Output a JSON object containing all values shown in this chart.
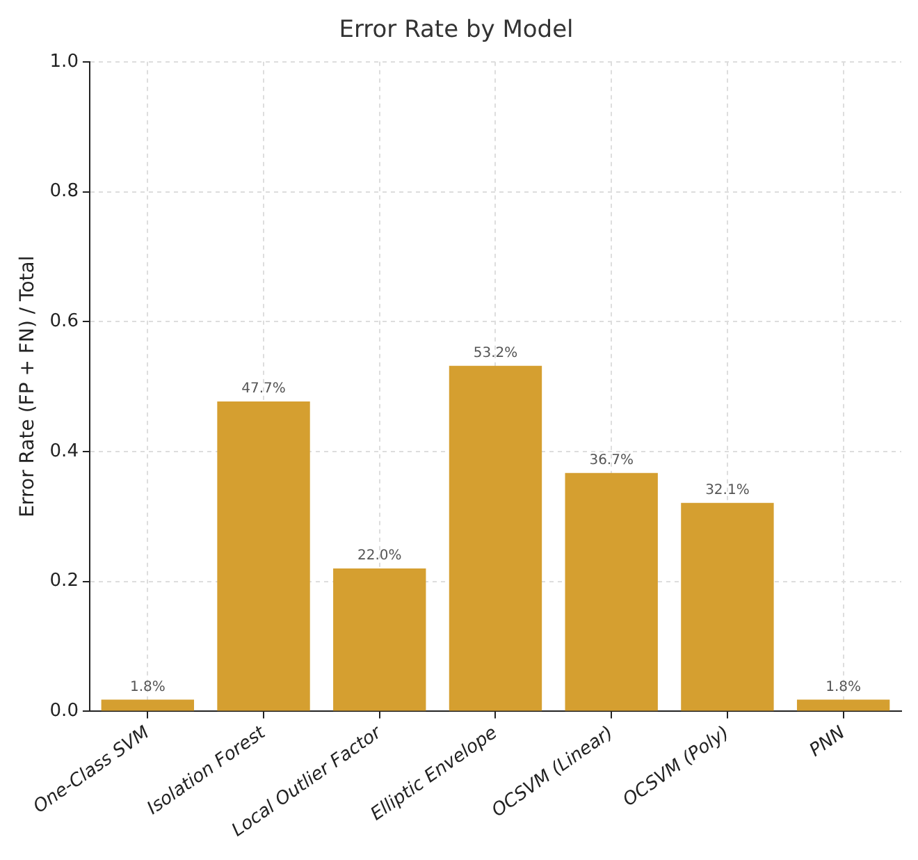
{
  "chart_data": {
    "type": "bar",
    "title": "Error Rate by Model",
    "ylabel": "Error Rate (FP + FN) / Total",
    "categories": [
      "One-Class SVM",
      "Isolation Forest",
      "Local Outlier Factor",
      "Elliptic Envelope",
      "OCSVM (Linear)",
      "OCSVM (Poly)",
      "PNN"
    ],
    "values": [
      0.018,
      0.477,
      0.22,
      0.532,
      0.367,
      0.321,
      0.018
    ],
    "value_labels": [
      "1.8%",
      "47.7%",
      "22.0%",
      "53.2%",
      "36.7%",
      "32.1%",
      "1.8%"
    ],
    "color": "#d59f30",
    "ylim": [
      0,
      1
    ],
    "yticks": [
      {
        "value": 0,
        "label": "0.0"
      },
      0.2,
      0.4,
      0.6,
      0.8,
      {
        "value": 1,
        "label": "1.0"
      }
    ],
    "grid": true
  }
}
